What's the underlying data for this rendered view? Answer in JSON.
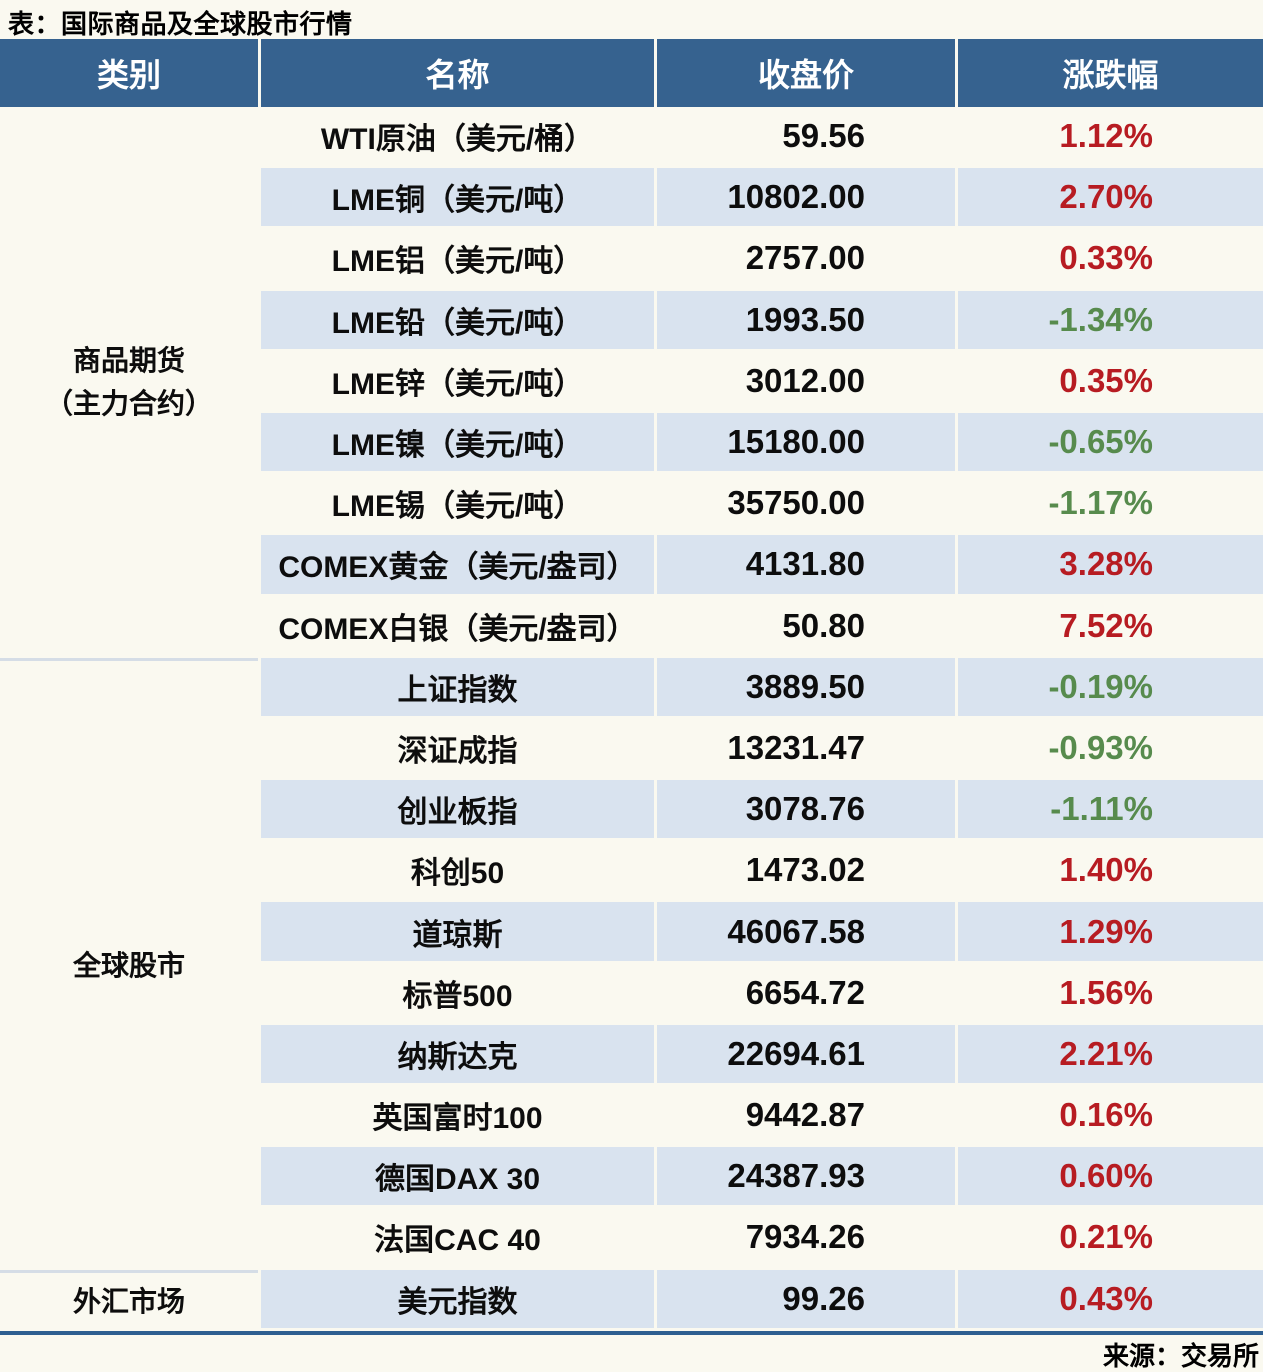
{
  "title": "表：国际商品及全球股市行情",
  "source": "来源：交易所",
  "colors": {
    "background": "#FAF9F0",
    "header_blue": "#36628F",
    "row_blue": "#D9E3EF",
    "up_red": "#B71C22",
    "down_green": "#578B4D",
    "bottom_line": "#2E5F91"
  },
  "chart_data": {
    "type": "table",
    "columns": [
      "类别",
      "名称",
      "收盘价",
      "涨跌幅"
    ],
    "sections": [
      {
        "category_lines": [
          "商品期货",
          "（主力合约）"
        ],
        "row_span": 9
      },
      {
        "category_lines": [
          "全球股市"
        ],
        "row_span": 10
      },
      {
        "category_lines": [
          "外汇市场"
        ],
        "row_span": 1
      }
    ],
    "rows": [
      {
        "name": "WTI原油（美元/桶）",
        "close": "59.56",
        "change": "1.12%",
        "direction": "up"
      },
      {
        "name": "LME铜（美元/吨）",
        "close": "10802.00",
        "change": "2.70%",
        "direction": "up"
      },
      {
        "name": "LME铝（美元/吨）",
        "close": "2757.00",
        "change": "0.33%",
        "direction": "up"
      },
      {
        "name": "LME铅（美元/吨）",
        "close": "1993.50",
        "change": "-1.34%",
        "direction": "down"
      },
      {
        "name": "LME锌（美元/吨）",
        "close": "3012.00",
        "change": "0.35%",
        "direction": "up"
      },
      {
        "name": "LME镍（美元/吨）",
        "close": "15180.00",
        "change": "-0.65%",
        "direction": "down"
      },
      {
        "name": "LME锡（美元/吨）",
        "close": "35750.00",
        "change": "-1.17%",
        "direction": "down"
      },
      {
        "name": "COMEX黄金（美元/盎司）",
        "close": "4131.80",
        "change": "3.28%",
        "direction": "up"
      },
      {
        "name": "COMEX白银（美元/盎司）",
        "close": "50.80",
        "change": "7.52%",
        "direction": "up"
      },
      {
        "name": "上证指数",
        "close": "3889.50",
        "change": "-0.19%",
        "direction": "down"
      },
      {
        "name": "深证成指",
        "close": "13231.47",
        "change": "-0.93%",
        "direction": "down"
      },
      {
        "name": "创业板指",
        "close": "3078.76",
        "change": "-1.11%",
        "direction": "down"
      },
      {
        "name": "科创50",
        "close": "1473.02",
        "change": "1.40%",
        "direction": "up"
      },
      {
        "name": "道琼斯",
        "close": "46067.58",
        "change": "1.29%",
        "direction": "up"
      },
      {
        "name": "标普500",
        "close": "6654.72",
        "change": "1.56%",
        "direction": "up"
      },
      {
        "name": "纳斯达克",
        "close": "22694.61",
        "change": "2.21%",
        "direction": "up"
      },
      {
        "name": "英国富时100",
        "close": "9442.87",
        "change": "0.16%",
        "direction": "up"
      },
      {
        "name": "德国DAX 30",
        "close": "24387.93",
        "change": "0.60%",
        "direction": "up"
      },
      {
        "name": "法国CAC 40",
        "close": "7934.26",
        "change": "0.21%",
        "direction": "up"
      },
      {
        "name": "美元指数",
        "close": "99.26",
        "change": "0.43%",
        "direction": "up"
      }
    ]
  }
}
